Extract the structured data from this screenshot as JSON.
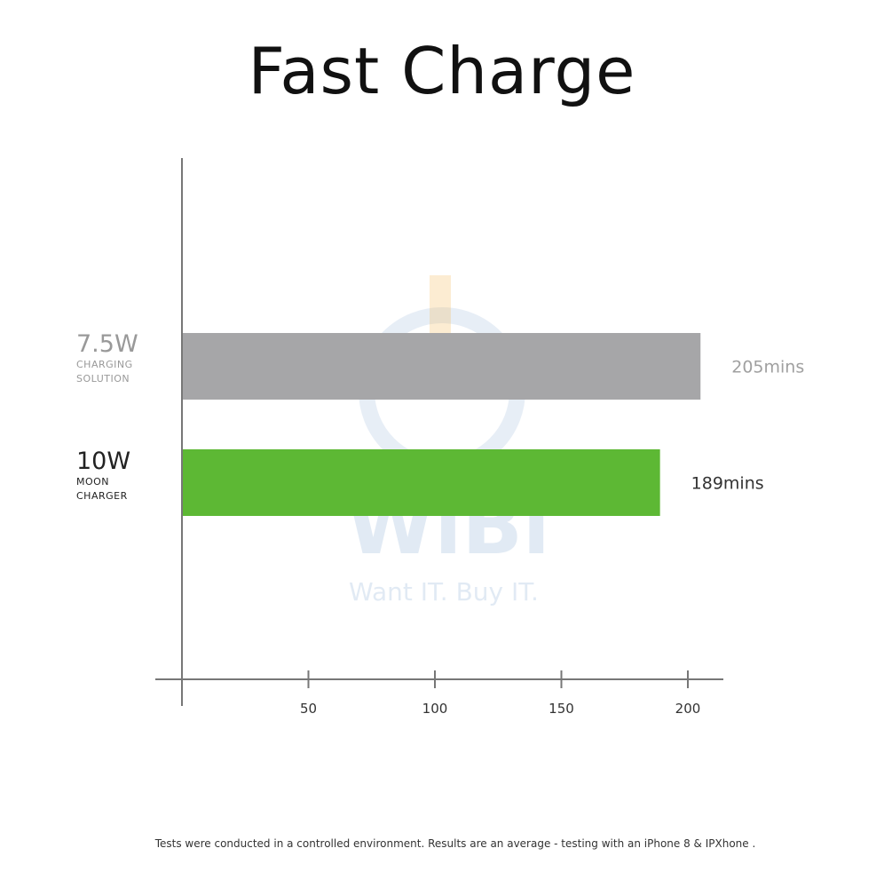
{
  "title": "Fast Charge",
  "footnote": "Tests were conducted in a controlled environment. Results are an average - testing with an iPhone 8 & IPXhone .",
  "watermark": {
    "logo": "WiBi",
    "tagline": "Want IT. Buy IT."
  },
  "chart_data": {
    "type": "bar",
    "orientation": "horizontal",
    "title": "Fast Charge",
    "categories": [
      {
        "main": "7.5W",
        "sub1": "CHARGING",
        "sub2": "SOLUTION"
      },
      {
        "main": "10W",
        "sub1": "MOON",
        "sub2": "CHARGER"
      }
    ],
    "values": [
      205,
      189
    ],
    "value_labels": [
      "205mins",
      "189mins"
    ],
    "colors": [
      "#a6a6a8",
      "#5db834"
    ],
    "value_label_colors": [
      "#a0a0a0",
      "#333333"
    ],
    "xlim": [
      0,
      215
    ],
    "xticks": [
      50,
      100,
      150,
      200
    ],
    "xtick_labels": [
      "50",
      "100",
      "150",
      "200"
    ],
    "grid": false
  }
}
